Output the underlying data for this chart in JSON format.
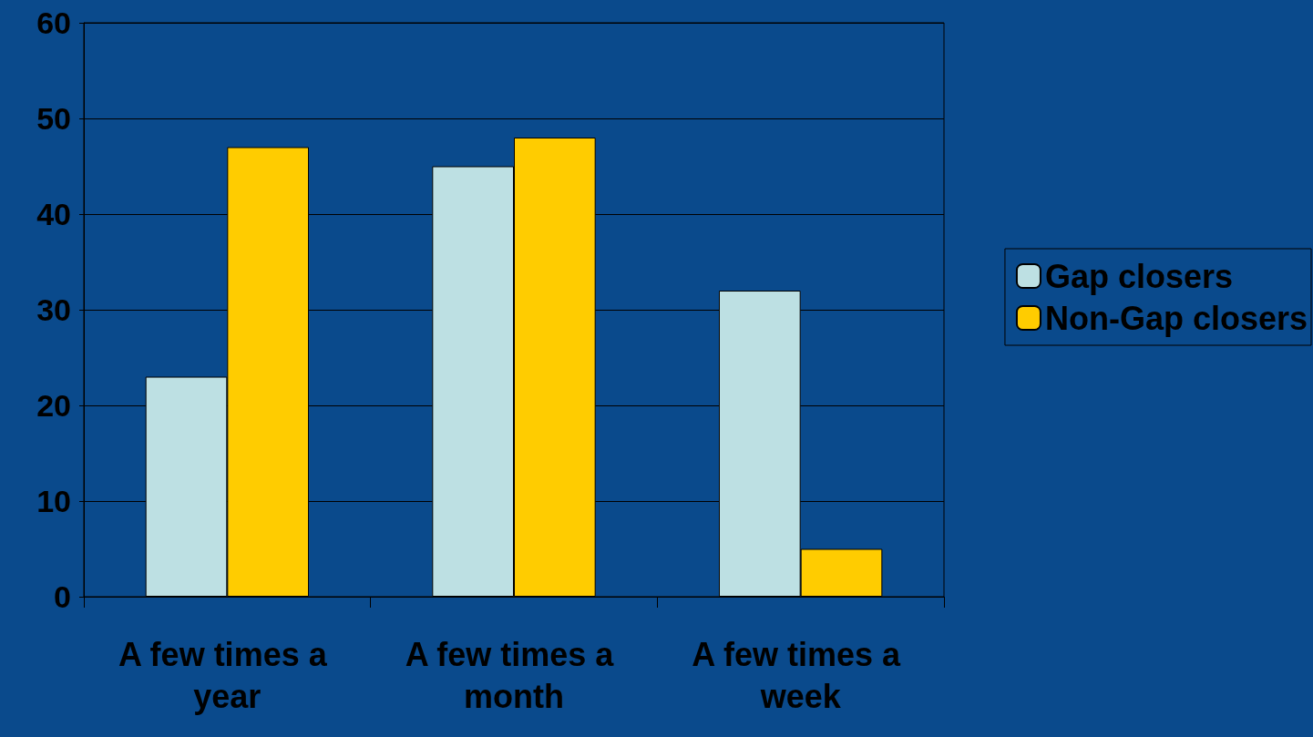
{
  "chart_data": {
    "type": "bar",
    "categories": [
      "A few times a year",
      "A few times a month",
      "A few times a week"
    ],
    "series": [
      {
        "name": "Gap closers",
        "color": "#bde0e3",
        "values": [
          23,
          45,
          32
        ]
      },
      {
        "name": "Non-Gap closers",
        "color": "#ffcc00",
        "values": [
          47,
          48,
          5
        ]
      }
    ],
    "ylim": [
      0,
      60
    ],
    "yticks": [
      0,
      10,
      20,
      30,
      40,
      50,
      60
    ],
    "grid": "y",
    "legend": "right"
  }
}
